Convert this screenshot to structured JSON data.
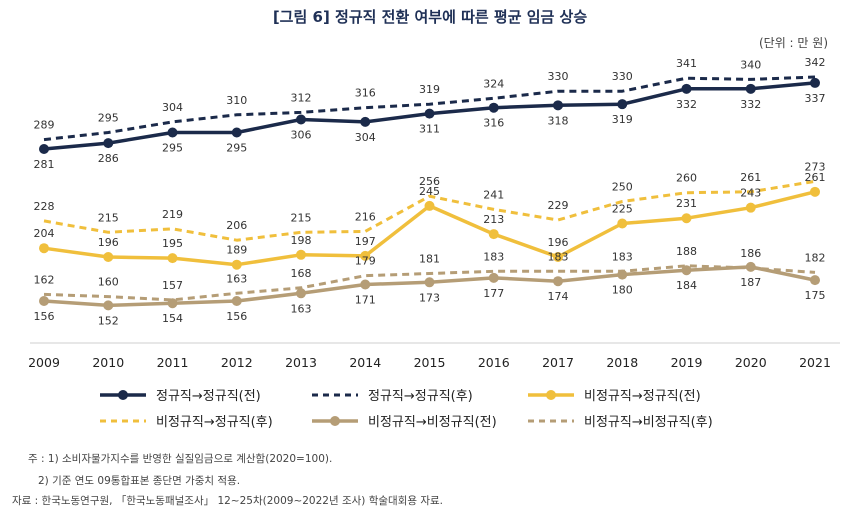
{
  "header": {
    "title": "[그림 6] 정규직 전환 여부에 따른 평균 임금 상승",
    "unit": "(단위 : 만 원)"
  },
  "footnotes": {
    "note1_prefix": "주 :",
    "note1": "1) 소비자물가지수를 반영한 실질임금으로 계산함(2020=100).",
    "note2": "2) 기준 연도 09통합표본 종단면 가중치 적용.",
    "source": "자료 : 한국노동연구원, 「한국노동패널조사」 12~25차(2009~2022년 조사) 학술대회용 자료."
  },
  "chart_data": {
    "type": "line",
    "title": "[그림 6] 정규직 전환 여부에 따른 평균 임금 상승",
    "xlabel": "",
    "ylabel": "",
    "unit": "(단위 : 만 원)",
    "x": [
      "2009",
      "2010",
      "2011",
      "2012",
      "2013",
      "2014",
      "2015",
      "2016",
      "2017",
      "2018",
      "2019",
      "2020",
      "2021"
    ],
    "ylim": [
      140,
      350
    ],
    "grid": false,
    "legend_position": "bottom",
    "series": [
      {
        "name": "정규직→정규직(전)",
        "color": "#1b2a4a",
        "style": "solid",
        "marker": true,
        "label_pos": "below",
        "values": [
          281,
          286,
          295,
          295,
          306,
          304,
          311,
          316,
          318,
          319,
          332,
          332,
          337
        ]
      },
      {
        "name": "정규직→정규직(후)",
        "color": "#1b2a4a",
        "style": "dashed",
        "marker": false,
        "label_pos": "above",
        "values": [
          289,
          295,
          304,
          310,
          312,
          316,
          319,
          324,
          330,
          330,
          341,
          340,
          342
        ]
      },
      {
        "name": "비정규직→정규직(전)",
        "color": "#f0bf3c",
        "style": "solid",
        "marker": true,
        "label_pos": "above",
        "values": [
          204,
          196,
          195,
          189,
          198,
          197,
          245,
          213,
          196,
          225,
          231,
          243,
          261
        ]
      },
      {
        "name": "비정규직→정규직(후)",
        "color": "#f0bf3c",
        "style": "dashed",
        "marker": false,
        "label_pos": "above",
        "values": [
          228,
          215,
          219,
          206,
          215,
          216,
          256,
          241,
          229,
          250,
          260,
          261,
          273
        ]
      },
      {
        "name": "비정규직→비정규직(전)",
        "color": "#b59d76",
        "style": "solid",
        "marker": true,
        "label_pos": "below",
        "values": [
          156,
          152,
          154,
          156,
          163,
          171,
          173,
          177,
          174,
          180,
          184,
          187,
          175
        ]
      },
      {
        "name": "비정규직→비정규직(후)",
        "color": "#b59d76",
        "style": "dashed",
        "marker": false,
        "label_pos": "above",
        "values": [
          162,
          160,
          157,
          163,
          168,
          179,
          181,
          183,
          183,
          183,
          188,
          186,
          182
        ]
      }
    ]
  }
}
